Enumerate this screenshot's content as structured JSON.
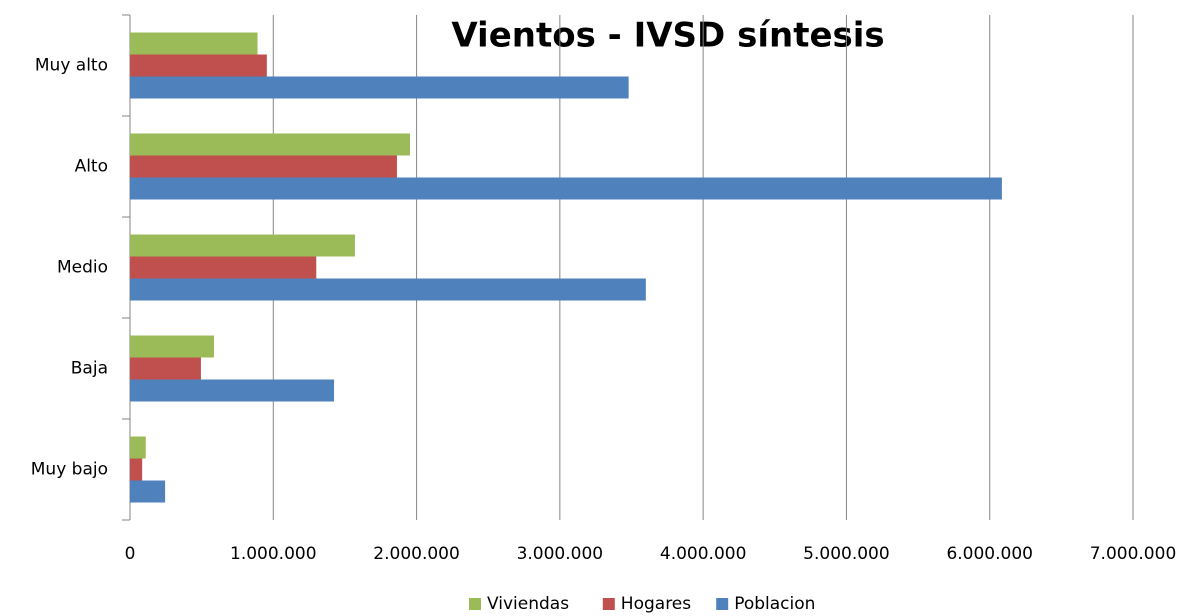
{
  "chart_data": {
    "type": "hbar",
    "title": "Vientos - IVSD síntesis",
    "categories": [
      "Muy alto",
      "Alto",
      "Medio",
      "Baja",
      "Muy bajo"
    ],
    "series": [
      {
        "name": "Viviendas",
        "color": "#9bbb59",
        "values": [
          890000,
          1954000,
          1570000,
          586000,
          110000
        ]
      },
      {
        "name": "Hogares",
        "color": "#c0504d",
        "values": [
          955000,
          1863000,
          1300000,
          495000,
          85000
        ]
      },
      {
        "name": "Poblacion",
        "color": "#4f81bd",
        "values": [
          3480000,
          6085000,
          3600000,
          1424000,
          245000
        ]
      }
    ],
    "xlim": [
      0,
      7000000
    ],
    "xticks": [
      0,
      {
        "value": 1000000,
        "label": "1.000.000"
      },
      {
        "value": 2000000,
        "label": "2.000.000"
      },
      {
        "value": 3000000,
        "label": "3.000.000"
      },
      {
        "value": 4000000,
        "label": "4.000.000"
      },
      {
        "value": 5000000,
        "label": "5.000.000"
      },
      {
        "value": 6000000,
        "label": "6.000.000"
      },
      {
        "value": 7000000,
        "label": "7.000.000"
      }
    ],
    "grid": true,
    "legend": "bottom"
  }
}
